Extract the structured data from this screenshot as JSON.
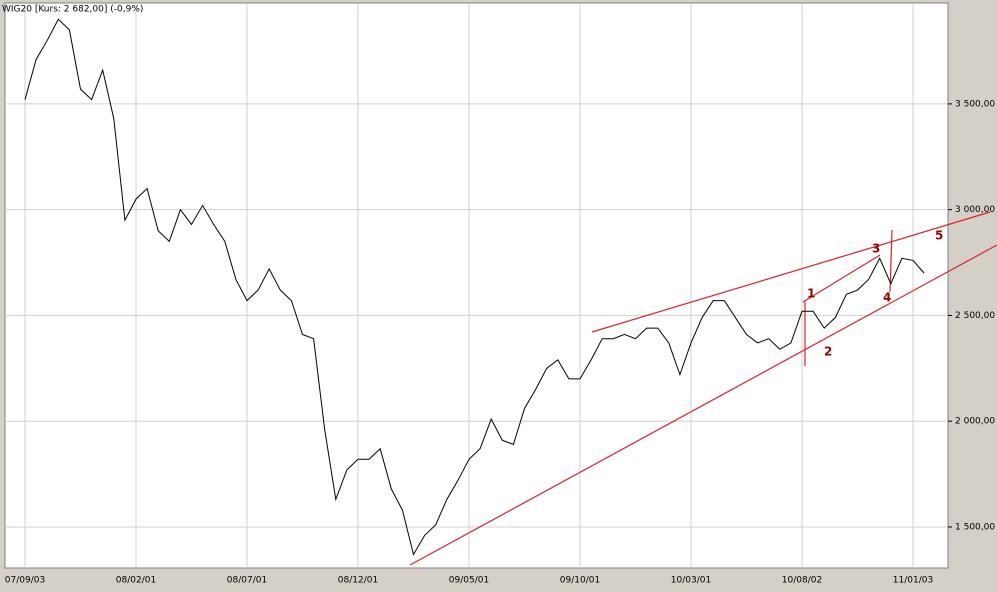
{
  "chart_data": {
    "type": "line",
    "title": "WIG20 [Kurs: 2 682,00] (-0,9%)",
    "categories": [
      "07/09/03",
      null,
      null,
      null,
      null,
      null,
      null,
      null,
      null,
      null,
      "08/02/01",
      null,
      null,
      null,
      null,
      null,
      null,
      null,
      null,
      null,
      "08/07/01",
      null,
      null,
      null,
      null,
      null,
      null,
      null,
      null,
      null,
      "08/12/01",
      null,
      null,
      null,
      null,
      null,
      null,
      null,
      null,
      null,
      "09/05/01",
      null,
      null,
      null,
      null,
      null,
      null,
      null,
      null,
      null,
      "09/10/01",
      null,
      null,
      null,
      null,
      null,
      null,
      null,
      null,
      null,
      "10/03/01",
      null,
      null,
      null,
      null,
      null,
      null,
      null,
      null,
      null,
      "10/08/02",
      null,
      null,
      null,
      null,
      null,
      null,
      null,
      null,
      null,
      "11/01/03",
      null
    ],
    "series": [
      {
        "name": "WIG20",
        "color": "#000000",
        "values": [
          3520,
          3710,
          3800,
          3900,
          3850,
          3570,
          3520,
          3660,
          3430,
          2950,
          3050,
          3100,
          2900,
          2850,
          3000,
          2930,
          3020,
          2930,
          2850,
          2670,
          2570,
          2620,
          2720,
          2620,
          2570,
          2410,
          2390,
          1960,
          1630,
          1770,
          1820,
          1820,
          1870,
          1680,
          1580,
          1370,
          1460,
          1510,
          1630,
          1720,
          1820,
          1870,
          2010,
          1910,
          1890,
          2060,
          2150,
          2250,
          2290,
          2200,
          2200,
          2290,
          2390,
          2390,
          2410,
          2390,
          2440,
          2440,
          2370,
          2220,
          2370,
          2490,
          2570,
          2570,
          2490,
          2410,
          2370,
          2390,
          2340,
          2370,
          2520,
          2520,
          2440,
          2490,
          2600,
          2620,
          2670,
          2770,
          2650,
          2770,
          2760,
          2700
        ]
      }
    ],
    "ylim": [
      1306,
      3977
    ],
    "yticks": [
      {
        "value": 1500,
        "label": "1 500,00"
      },
      {
        "value": 2000,
        "label": "2 000,00"
      },
      {
        "value": 2500,
        "label": "2 500,00"
      },
      {
        "value": 3000,
        "label": "3 000,00"
      },
      {
        "value": 3500,
        "label": "3 500,00"
      }
    ],
    "grid": true,
    "annotations": [
      "1",
      "2",
      "3",
      "4",
      "5"
    ]
  }
}
